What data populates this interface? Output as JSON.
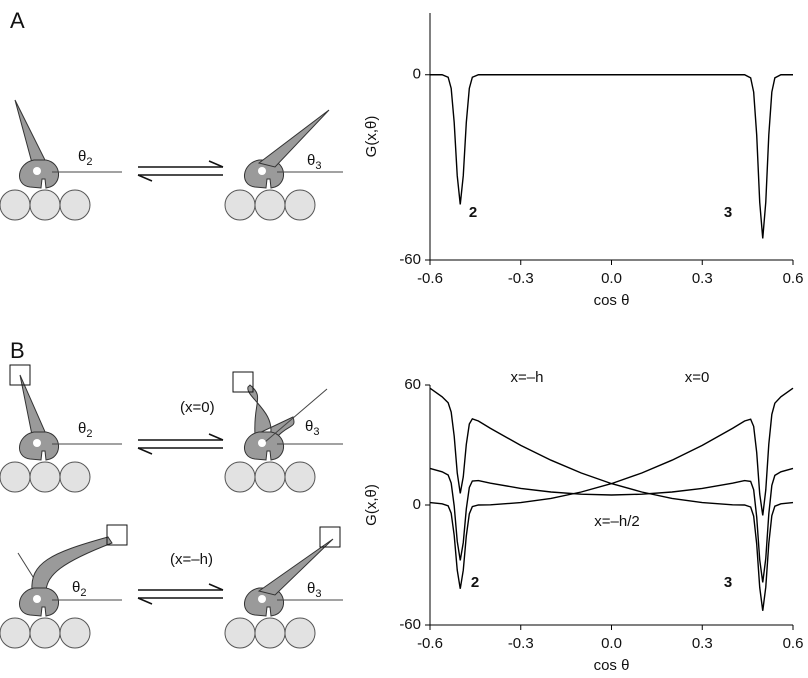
{
  "panels": {
    "a": "A",
    "b": "B"
  },
  "diagrams": {
    "theta": "θ",
    "sub2": "2",
    "sub3": "3",
    "state_x0": "(x=0)",
    "state_xh": "(x=–h)"
  },
  "chart_data": [
    {
      "type": "line",
      "y_label": "G(x,θ)",
      "x_label": "cos θ",
      "x": [
        -0.6,
        -0.56,
        -0.54,
        -0.53,
        -0.52,
        -0.51,
        -0.5,
        -0.49,
        -0.48,
        -0.47,
        -0.46,
        -0.44,
        -0.3,
        0,
        0.3,
        0.44,
        0.46,
        0.47,
        0.48,
        0.49,
        0.5,
        0.51,
        0.52,
        0.53,
        0.54,
        0.56,
        0.6
      ],
      "series": [
        {
          "color": "#000000",
          "values": [
            0,
            0,
            -0.8,
            -4.4,
            -15.5,
            -32.7,
            -42,
            -32.7,
            -15.5,
            -4.4,
            -0.8,
            0,
            0,
            0,
            0,
            0,
            -1.0,
            -5.6,
            -19.5,
            -41.3,
            -53,
            -41.3,
            -19.5,
            -5.6,
            -1.0,
            0,
            0
          ]
        }
      ],
      "annotations": [
        "2",
        "3"
      ],
      "xlim": [
        -0.6,
        0.6
      ],
      "ylim": [
        -60,
        20
      ],
      "xticks": [
        -0.6,
        -0.3,
        {
          "value": 0,
          "label": "0.0"
        },
        0.3,
        0.6
      ],
      "yticks": [
        -60,
        0
      ]
    },
    {
      "type": "line",
      "y_label": "G(x,θ)",
      "x_label": "cos θ",
      "x": [
        -0.6,
        -0.56,
        -0.54,
        -0.53,
        -0.52,
        -0.51,
        -0.5,
        -0.49,
        -0.48,
        -0.47,
        -0.46,
        -0.44,
        -0.4,
        -0.3,
        -0.2,
        -0.1,
        0,
        0.1,
        0.2,
        0.3,
        0.4,
        0.44,
        0.46,
        0.47,
        0.48,
        0.49,
        0.5,
        0.51,
        0.52,
        0.53,
        0.54,
        0.56,
        0.6
      ],
      "series": [
        {
          "name": "x=–h",
          "color": "#000000",
          "values": [
            58.4,
            54.1,
            51.1,
            46.5,
            34.4,
            16.1,
            5.8,
            14.1,
            30.3,
            40.5,
            43.1,
            42.0,
            38.3,
            29.8,
            22.4,
            16.0,
            10.7,
            6.5,
            3.3,
            1.2,
            0.1,
            0,
            -1.0,
            -5.6,
            -19.5,
            -41.2,
            -52.9,
            -41.1,
            -19.2,
            -5.3,
            -0.6,
            0.6,
            1.2
          ]
        },
        {
          "name": "x=0",
          "color": "#000000",
          "values": [
            1.2,
            0.6,
            -0.4,
            -4.1,
            -15.2,
            -32.5,
            -41.9,
            -32.6,
            -15.5,
            -4.4,
            -0.8,
            0,
            0.1,
            1.2,
            3.3,
            6.5,
            10.7,
            16.0,
            22.4,
            29.8,
            38.3,
            42.0,
            42.9,
            39.3,
            26.3,
            5.5,
            -5.2,
            7.5,
            30.4,
            45.3,
            50.9,
            54.1,
            58.4
          ]
        },
        {
          "name": "x=–h/2",
          "color": "#000000",
          "values": [
            18.3,
            16.6,
            15.0,
            11.0,
            -0.5,
            -18.1,
            -27.7,
            -18.8,
            -2.0,
            8.8,
            12.0,
            12.2,
            10.9,
            8.3,
            6.5,
            5.4,
            5.0,
            5.4,
            6.5,
            8.3,
            10.9,
            12.2,
            11.8,
            7.6,
            -6.0,
            -27.4,
            -38.7,
            -26.7,
            -4.5,
            9.8,
            14.8,
            16.6,
            18.3
          ]
        }
      ],
      "annotations": [
        "2",
        "3"
      ],
      "xlim": [
        -0.6,
        0.6
      ],
      "ylim": [
        -60,
        60
      ],
      "xticks": [
        -0.6,
        -0.3,
        {
          "value": 0,
          "label": "0.0"
        },
        0.3,
        0.6
      ],
      "yticks": [
        -60,
        0,
        60
      ]
    }
  ]
}
